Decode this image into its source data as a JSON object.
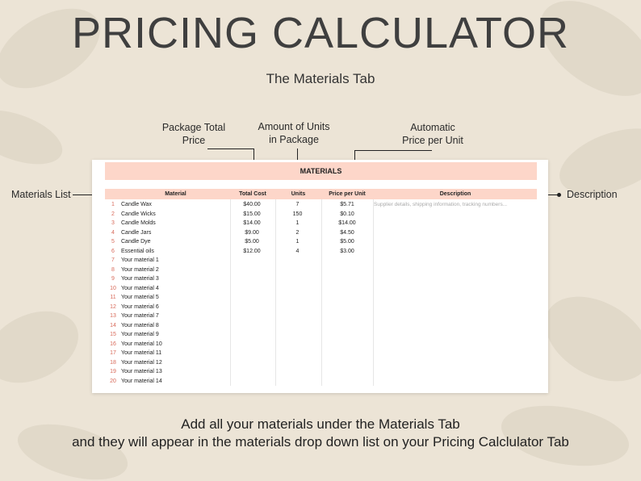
{
  "title": "PRICING CALCULATOR",
  "subtitle": "The Materials Tab",
  "callouts": {
    "package_total_price_line1": "Package Total",
    "package_total_price_line2": "Price",
    "amount_of_units_line1": "Amount of Units",
    "amount_of_units_line2": "in Package",
    "automatic_price_line1": "Automatic",
    "automatic_price_line2": "Price per Unit",
    "materials_list": "Materials List",
    "description": "Description"
  },
  "sheet": {
    "title": "MATERIALS",
    "columns": {
      "material": "Material",
      "total_cost": "Total Cost",
      "units": "Units",
      "price_per_unit": "Price per Unit",
      "description": "Description"
    },
    "rows": [
      {
        "n": "1",
        "material": "Candle Wax",
        "cost": "$40.00",
        "units": "7",
        "ppu": "$5.71",
        "desc": "Supplier details, shipping information, tracking numbers..."
      },
      {
        "n": "2",
        "material": "Candle Wicks",
        "cost": "$15.00",
        "units": "150",
        "ppu": "$0.10",
        "desc": ""
      },
      {
        "n": "3",
        "material": "Candle Molds",
        "cost": "$14.00",
        "units": "1",
        "ppu": "$14.00",
        "desc": ""
      },
      {
        "n": "4",
        "material": "Candle Jars",
        "cost": "$9.00",
        "units": "2",
        "ppu": "$4.50",
        "desc": ""
      },
      {
        "n": "5",
        "material": "Candle Dye",
        "cost": "$5.00",
        "units": "1",
        "ppu": "$5.00",
        "desc": ""
      },
      {
        "n": "6",
        "material": "Essential oils",
        "cost": "$12.00",
        "units": "4",
        "ppu": "$3.00",
        "desc": ""
      },
      {
        "n": "7",
        "material": "Your material 1",
        "cost": "",
        "units": "",
        "ppu": "",
        "desc": ""
      },
      {
        "n": "8",
        "material": "Your material 2",
        "cost": "",
        "units": "",
        "ppu": "",
        "desc": ""
      },
      {
        "n": "9",
        "material": "Your material 3",
        "cost": "",
        "units": "",
        "ppu": "",
        "desc": ""
      },
      {
        "n": "10",
        "material": "Your material 4",
        "cost": "",
        "units": "",
        "ppu": "",
        "desc": ""
      },
      {
        "n": "11",
        "material": "Your material 5",
        "cost": "",
        "units": "",
        "ppu": "",
        "desc": ""
      },
      {
        "n": "12",
        "material": "Your material 6",
        "cost": "",
        "units": "",
        "ppu": "",
        "desc": ""
      },
      {
        "n": "13",
        "material": "Your material 7",
        "cost": "",
        "units": "",
        "ppu": "",
        "desc": ""
      },
      {
        "n": "14",
        "material": "Your material 8",
        "cost": "",
        "units": "",
        "ppu": "",
        "desc": ""
      },
      {
        "n": "15",
        "material": "Your material 9",
        "cost": "",
        "units": "",
        "ppu": "",
        "desc": ""
      },
      {
        "n": "16",
        "material": "Your material 10",
        "cost": "",
        "units": "",
        "ppu": "",
        "desc": ""
      },
      {
        "n": "17",
        "material": "Your material 11",
        "cost": "",
        "units": "",
        "ppu": "",
        "desc": ""
      },
      {
        "n": "18",
        "material": "Your material 12",
        "cost": "",
        "units": "",
        "ppu": "",
        "desc": ""
      },
      {
        "n": "19",
        "material": "Your material 13",
        "cost": "",
        "units": "",
        "ppu": "",
        "desc": ""
      },
      {
        "n": "20",
        "material": "Your material 14",
        "cost": "",
        "units": "",
        "ppu": "",
        "desc": ""
      }
    ]
  },
  "footer": {
    "line1": "Add all your materials under the Materials Tab",
    "line2": "and they will appear in the materials drop down list  on your Pricing Calclulator Tab"
  },
  "colors": {
    "background": "#ece4d6",
    "accent": "#fdd6c9",
    "row_number": "#d86a5a"
  }
}
